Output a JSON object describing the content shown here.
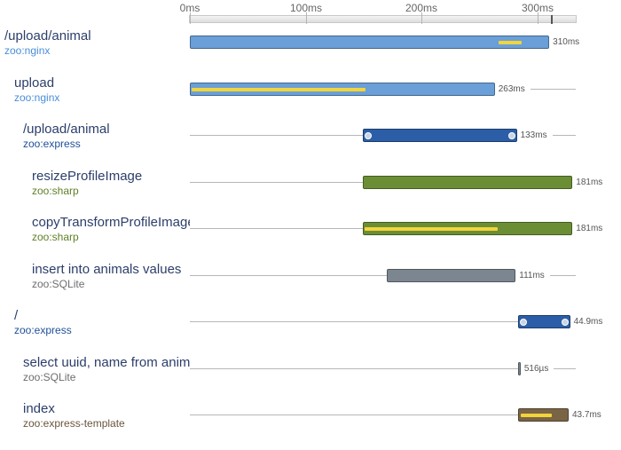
{
  "timeline": {
    "ticks": [
      {
        "ms": 0,
        "label": "0ms"
      },
      {
        "ms": 100,
        "label": "100ms"
      },
      {
        "ms": 200,
        "label": "200ms"
      },
      {
        "ms": 300,
        "label": "300ms"
      }
    ],
    "end_ms": 310
  },
  "colors": {
    "nginx": "#6a9fd8",
    "express": "#2b5ea7",
    "sharp": "#6b8e35",
    "sqlite": "#7c8690",
    "template": "#7a6446",
    "nginx_service": "#4a8ed8",
    "express_service": "#1f4f9a",
    "sharp_service": "#5f7f26",
    "sqlite_service": "#6d6d6d",
    "template_service": "#6a553a",
    "inner_highlight": "#f2d43b"
  },
  "spans": [
    {
      "name": "/upload/animal",
      "service": "zoo:nginx",
      "kind": "nginx",
      "depth": 0,
      "start_ms": 0,
      "duration_ms": 310,
      "duration_label": "310ms",
      "inner": [
        {
          "start_ms": 265,
          "duration_ms": 20
        }
      ],
      "dots": false
    },
    {
      "name": "upload",
      "service": "zoo:nginx",
      "kind": "nginx",
      "depth": 1,
      "start_ms": 0,
      "duration_ms": 263,
      "duration_label": "263ms",
      "inner": [
        {
          "start_ms": 0,
          "duration_ms": 150
        }
      ],
      "dots": false
    },
    {
      "name": "/upload/animal",
      "service": "zoo:express",
      "kind": "express",
      "depth": 2,
      "start_ms": 149,
      "duration_ms": 133,
      "duration_label": "133ms",
      "inner": [],
      "dots": true
    },
    {
      "name": "resizeProfileImage",
      "service": "zoo:sharp",
      "kind": "sharp",
      "depth": 3,
      "start_ms": 149,
      "duration_ms": 181,
      "duration_label": "181ms",
      "inner": [],
      "dots": false
    },
    {
      "name": "copyTransformProfileImage",
      "service": "zoo:sharp",
      "kind": "sharp",
      "depth": 3,
      "start_ms": 149,
      "duration_ms": 181,
      "duration_label": "181ms",
      "inner": [
        {
          "start_ms": 149,
          "duration_ms": 115
        }
      ],
      "dots": false
    },
    {
      "name": "insert into animals values",
      "service": "zoo:SQLite",
      "kind": "sqlite",
      "depth": 3,
      "start_ms": 170,
      "duration_ms": 111,
      "duration_label": "111ms",
      "inner": [],
      "dots": false
    },
    {
      "name": "/",
      "service": "zoo:express",
      "kind": "express",
      "depth": 1,
      "start_ms": 283,
      "duration_ms": 44.9,
      "duration_label": "44.9ms",
      "inner": [],
      "dots": true
    },
    {
      "name": "select uuid, name from animals",
      "service": "zoo:SQLite",
      "kind": "sqlite",
      "depth": 2,
      "start_ms": 283,
      "duration_ms": 0.516,
      "duration_label": "516µs",
      "inner": [],
      "dots": false
    },
    {
      "name": "index",
      "service": "zoo:express-template",
      "kind": "template",
      "depth": 2,
      "start_ms": 283,
      "duration_ms": 43.7,
      "duration_label": "43.7ms",
      "inner": [
        {
          "start_ms": 284,
          "duration_ms": 27
        }
      ],
      "dots": false
    }
  ]
}
